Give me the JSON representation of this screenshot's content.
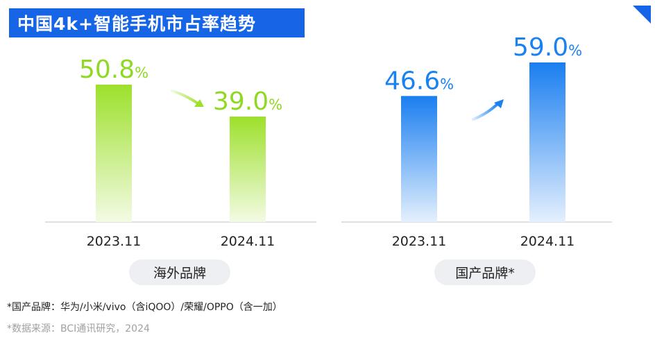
{
  "title": "中国4k+智能手机市占率趋势",
  "chart_data": [
    {
      "type": "bar",
      "name": "海外品牌",
      "categories": [
        "2023.11",
        "2024.11"
      ],
      "values": [
        50.8,
        39.0
      ],
      "value_labels": [
        "50.8",
        "39.0"
      ],
      "unit": "%",
      "trend": "down",
      "color": "#9de02c"
    },
    {
      "type": "bar",
      "name": "国产品牌*",
      "categories": [
        "2023.11",
        "2024.11"
      ],
      "values": [
        46.6,
        59.0
      ],
      "value_labels": [
        "46.6",
        "59.0"
      ],
      "unit": "%",
      "trend": "up",
      "color": "#1a82f0"
    }
  ],
  "footnotes": {
    "brands": "*国产品牌：华为/小米/vivo（含iQOO）/荣耀/OPPO（含一加）",
    "source": "*数据来源：BCI通讯研究，2024"
  },
  "colors": {
    "title_bg": "#1565e6",
    "overseas": "#9de02c",
    "domestic": "#1a82f0"
  }
}
